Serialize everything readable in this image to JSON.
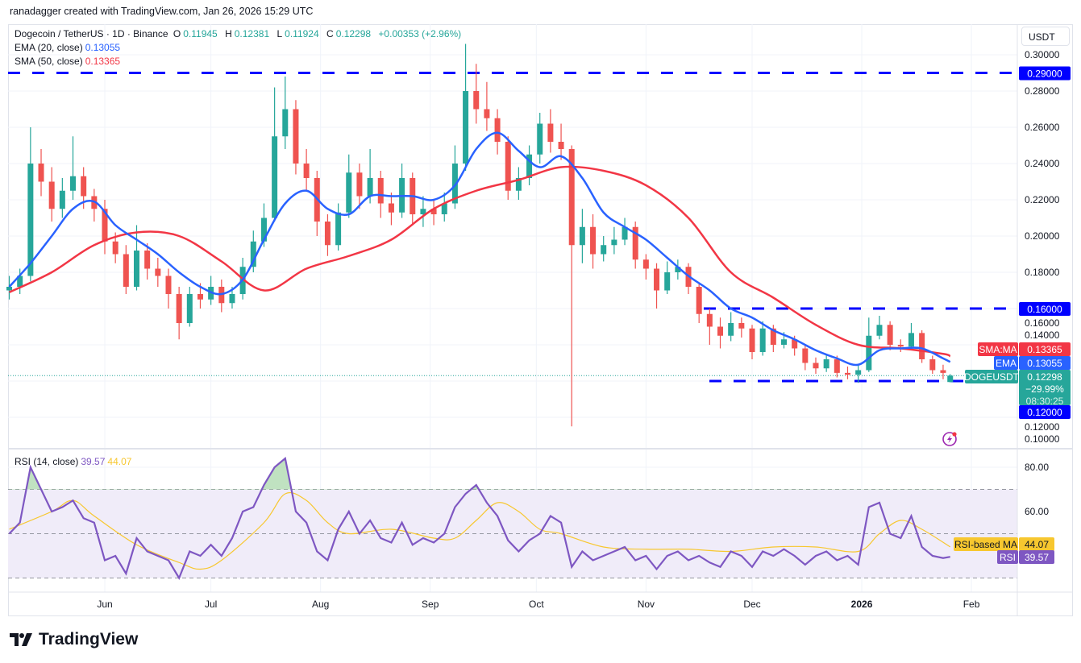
{
  "attribution": "ranadagger created with TradingView.com, Jan 26, 2026 15:29 UTC",
  "legend": {
    "symbol": "Dogecoin / TetherUS · 1D · Binance",
    "open_label": "O",
    "open": "0.11945",
    "high_label": "H",
    "high": "0.12381",
    "low_label": "L",
    "low": "0.11924",
    "close_label": "C",
    "close": "0.12298",
    "change": "+0.00353 (+2.96%)",
    "ema_label": "EMA (20, close)",
    "ema_value": "0.13055",
    "sma_label": "SMA (50, close)",
    "sma_value": "0.13365",
    "rsi_label": "RSI (14, close)",
    "rsi_value": "39.57",
    "rsi_ma_value": "44.07"
  },
  "price_axis": {
    "unit": "USDT",
    "ticks": [
      "0.30000",
      "0.28000",
      "0.26000",
      "0.24000",
      "0.22000",
      "0.20000",
      "0.18000",
      "0.16000",
      "0.14000",
      "0.12000",
      "0.10000"
    ],
    "tick_values": [
      0.3,
      0.28,
      0.26,
      0.24,
      0.22,
      0.2,
      0.18,
      0.16,
      0.14,
      0.12,
      0.1
    ]
  },
  "rsi_axis": {
    "ticks": [
      "80.00",
      "60.00"
    ],
    "tick_values": [
      80,
      60
    ],
    "bands": [
      70,
      50,
      30
    ]
  },
  "time_axis": {
    "labels": [
      "Jun",
      "Jul",
      "Aug",
      "Sep",
      "Oct",
      "Nov",
      "Dec",
      "2026",
      "Feb"
    ],
    "dates": [
      "2025-06-01",
      "2025-07-01",
      "2025-08-01",
      "2025-09-01",
      "2025-10-01",
      "2025-11-01",
      "2025-12-01",
      "2026-01-01",
      "2026-02-01"
    ]
  },
  "price_labels": {
    "level_290": "0.29000",
    "level_160": "0.16000",
    "level_120": "0.12000",
    "sma_tag": "SMA:MA",
    "sma_value": "0.13365",
    "ema_tag": "EMA",
    "ema_value": "0.13055",
    "symbol_tag": "DOGEUSDT",
    "last_price": "0.12298",
    "change_pct": "−29.99%",
    "countdown": "08:30:25",
    "rsi_ma_tag": "RSI-based MA",
    "rsi_ma_value": "44.07",
    "rsi_tag": "RSI",
    "rsi_value": "39.57"
  },
  "colors": {
    "up": "#26a69a",
    "down": "#ef5350",
    "ema": "#2962ff",
    "sma": "#f23645",
    "rsi": "#7e57c2",
    "rsi_ma": "#f7c72f",
    "levels": "#0000ff",
    "rsi_band": "#f0ecf9"
  },
  "icons": {
    "alert": "lightning-alert-icon",
    "logo": "tradingview-logo"
  },
  "brand": "TradingView",
  "chart_data": {
    "type": "candlestick",
    "interval": "1D (sampled every 3 days, estimated)",
    "ylim": [
      0.09,
      0.31
    ],
    "horizontal_levels": [
      0.29,
      0.16,
      0.12
    ],
    "candles_columns": [
      "date",
      "open",
      "high",
      "low",
      "close"
    ],
    "candles": [
      [
        "2025-05-05",
        0.17,
        0.178,
        0.165,
        0.172
      ],
      [
        "2025-05-08",
        0.172,
        0.182,
        0.168,
        0.178
      ],
      [
        "2025-05-11",
        0.178,
        0.26,
        0.175,
        0.24
      ],
      [
        "2025-05-14",
        0.24,
        0.248,
        0.222,
        0.23
      ],
      [
        "2025-05-17",
        0.23,
        0.238,
        0.208,
        0.215
      ],
      [
        "2025-05-20",
        0.215,
        0.232,
        0.21,
        0.225
      ],
      [
        "2025-05-23",
        0.225,
        0.255,
        0.22,
        0.233
      ],
      [
        "2025-05-26",
        0.233,
        0.238,
        0.215,
        0.222
      ],
      [
        "2025-05-29",
        0.222,
        0.226,
        0.208,
        0.215
      ],
      [
        "2025-06-01",
        0.215,
        0.22,
        0.19,
        0.197
      ],
      [
        "2025-06-04",
        0.197,
        0.202,
        0.185,
        0.19
      ],
      [
        "2025-06-07",
        0.19,
        0.195,
        0.168,
        0.172
      ],
      [
        "2025-06-10",
        0.172,
        0.206,
        0.17,
        0.192
      ],
      [
        "2025-06-13",
        0.192,
        0.196,
        0.176,
        0.182
      ],
      [
        "2025-06-16",
        0.182,
        0.188,
        0.172,
        0.178
      ],
      [
        "2025-06-19",
        0.178,
        0.182,
        0.16,
        0.168
      ],
      [
        "2025-06-22",
        0.168,
        0.172,
        0.143,
        0.152
      ],
      [
        "2025-06-25",
        0.152,
        0.172,
        0.15,
        0.168
      ],
      [
        "2025-06-28",
        0.168,
        0.174,
        0.16,
        0.165
      ],
      [
        "2025-07-01",
        0.165,
        0.178,
        0.162,
        0.172
      ],
      [
        "2025-07-04",
        0.172,
        0.176,
        0.158,
        0.163
      ],
      [
        "2025-07-07",
        0.163,
        0.172,
        0.16,
        0.168
      ],
      [
        "2025-07-10",
        0.168,
        0.188,
        0.165,
        0.183
      ],
      [
        "2025-07-13",
        0.183,
        0.203,
        0.18,
        0.197
      ],
      [
        "2025-07-16",
        0.197,
        0.218,
        0.194,
        0.21
      ],
      [
        "2025-07-19",
        0.21,
        0.282,
        0.208,
        0.255
      ],
      [
        "2025-07-22",
        0.255,
        0.288,
        0.248,
        0.27
      ],
      [
        "2025-07-25",
        0.27,
        0.275,
        0.234,
        0.24
      ],
      [
        "2025-07-28",
        0.24,
        0.248,
        0.225,
        0.232
      ],
      [
        "2025-07-31",
        0.232,
        0.236,
        0.2,
        0.208
      ],
      [
        "2025-08-03",
        0.208,
        0.212,
        0.189,
        0.195
      ],
      [
        "2025-08-06",
        0.195,
        0.218,
        0.192,
        0.213
      ],
      [
        "2025-08-09",
        0.213,
        0.245,
        0.21,
        0.235
      ],
      [
        "2025-08-12",
        0.235,
        0.24,
        0.215,
        0.222
      ],
      [
        "2025-08-15",
        0.222,
        0.248,
        0.218,
        0.232
      ],
      [
        "2025-08-18",
        0.232,
        0.236,
        0.21,
        0.218
      ],
      [
        "2025-08-21",
        0.218,
        0.224,
        0.206,
        0.213
      ],
      [
        "2025-08-24",
        0.213,
        0.24,
        0.21,
        0.232
      ],
      [
        "2025-08-27",
        0.232,
        0.235,
        0.206,
        0.212
      ],
      [
        "2025-08-30",
        0.212,
        0.222,
        0.205,
        0.215
      ],
      [
        "2025-09-02",
        0.215,
        0.22,
        0.206,
        0.212
      ],
      [
        "2025-09-05",
        0.212,
        0.224,
        0.208,
        0.218
      ],
      [
        "2025-09-08",
        0.218,
        0.25,
        0.215,
        0.24
      ],
      [
        "2025-09-11",
        0.24,
        0.306,
        0.236,
        0.28
      ],
      [
        "2025-09-14",
        0.28,
        0.295,
        0.262,
        0.27
      ],
      [
        "2025-09-17",
        0.27,
        0.285,
        0.258,
        0.265
      ],
      [
        "2025-09-20",
        0.265,
        0.27,
        0.245,
        0.252
      ],
      [
        "2025-09-23",
        0.252,
        0.255,
        0.22,
        0.225
      ],
      [
        "2025-09-26",
        0.225,
        0.238,
        0.22,
        0.232
      ],
      [
        "2025-09-29",
        0.232,
        0.25,
        0.228,
        0.245
      ],
      [
        "2025-10-02",
        0.245,
        0.268,
        0.24,
        0.262
      ],
      [
        "2025-10-05",
        0.262,
        0.27,
        0.246,
        0.252
      ],
      [
        "2025-10-08",
        0.252,
        0.262,
        0.242,
        0.248
      ],
      [
        "2025-10-11",
        0.248,
        0.25,
        0.095,
        0.195
      ],
      [
        "2025-10-14",
        0.195,
        0.215,
        0.185,
        0.205
      ],
      [
        "2025-10-17",
        0.205,
        0.212,
        0.182,
        0.19
      ],
      [
        "2025-10-20",
        0.19,
        0.2,
        0.186,
        0.195
      ],
      [
        "2025-10-23",
        0.195,
        0.205,
        0.19,
        0.198
      ],
      [
        "2025-10-26",
        0.198,
        0.21,
        0.195,
        0.205
      ],
      [
        "2025-10-29",
        0.205,
        0.208,
        0.182,
        0.187
      ],
      [
        "2025-11-01",
        0.187,
        0.19,
        0.176,
        0.182
      ],
      [
        "2025-11-04",
        0.182,
        0.185,
        0.16,
        0.17
      ],
      [
        "2025-11-07",
        0.17,
        0.186,
        0.168,
        0.18
      ],
      [
        "2025-11-10",
        0.18,
        0.187,
        0.176,
        0.183
      ],
      [
        "2025-11-13",
        0.183,
        0.185,
        0.168,
        0.172
      ],
      [
        "2025-11-16",
        0.172,
        0.174,
        0.152,
        0.157
      ],
      [
        "2025-11-19",
        0.157,
        0.16,
        0.14,
        0.15
      ],
      [
        "2025-11-22",
        0.15,
        0.155,
        0.138,
        0.145
      ],
      [
        "2025-11-25",
        0.145,
        0.158,
        0.142,
        0.152
      ],
      [
        "2025-11-28",
        0.152,
        0.155,
        0.144,
        0.149
      ],
      [
        "2025-12-01",
        0.149,
        0.151,
        0.132,
        0.136
      ],
      [
        "2025-12-04",
        0.136,
        0.153,
        0.134,
        0.149
      ],
      [
        "2025-12-07",
        0.149,
        0.151,
        0.136,
        0.14
      ],
      [
        "2025-12-10",
        0.14,
        0.147,
        0.138,
        0.143
      ],
      [
        "2025-12-13",
        0.143,
        0.145,
        0.134,
        0.138
      ],
      [
        "2025-12-16",
        0.138,
        0.14,
        0.126,
        0.13
      ],
      [
        "2025-12-19",
        0.13,
        0.133,
        0.124,
        0.127
      ],
      [
        "2025-12-22",
        0.127,
        0.135,
        0.125,
        0.132
      ],
      [
        "2025-12-25",
        0.132,
        0.134,
        0.122,
        0.1245
      ],
      [
        "2025-12-28",
        0.1245,
        0.128,
        0.121,
        0.1235
      ],
      [
        "2025-12-31",
        0.1235,
        0.129,
        0.119,
        0.126
      ],
      [
        "2026-01-03",
        0.126,
        0.155,
        0.125,
        0.145
      ],
      [
        "2026-01-06",
        0.145,
        0.156,
        0.143,
        0.151
      ],
      [
        "2026-01-09",
        0.151,
        0.153,
        0.137,
        0.14
      ],
      [
        "2026-01-12",
        0.14,
        0.143,
        0.136,
        0.139
      ],
      [
        "2026-01-15",
        0.139,
        0.152,
        0.137,
        0.1465
      ],
      [
        "2026-01-18",
        0.1465,
        0.148,
        0.13,
        0.132
      ],
      [
        "2026-01-21",
        0.132,
        0.134,
        0.124,
        0.126
      ],
      [
        "2026-01-24",
        0.126,
        0.129,
        0.121,
        0.1245
      ],
      [
        "2026-01-26",
        0.11945,
        0.12381,
        0.11924,
        0.12298
      ]
    ],
    "ema20": [
      [
        "2025-05-05",
        0.172
      ],
      [
        "2025-05-11",
        0.185
      ],
      [
        "2025-05-17",
        0.2
      ],
      [
        "2025-05-23",
        0.215
      ],
      [
        "2025-05-29",
        0.219
      ],
      [
        "2025-06-04",
        0.206
      ],
      [
        "2025-06-10",
        0.198
      ],
      [
        "2025-06-16",
        0.19
      ],
      [
        "2025-06-22",
        0.18
      ],
      [
        "2025-06-28",
        0.172
      ],
      [
        "2025-07-04",
        0.168
      ],
      [
        "2025-07-10",
        0.176
      ],
      [
        "2025-07-16",
        0.198
      ],
      [
        "2025-07-22",
        0.218
      ],
      [
        "2025-07-28",
        0.225
      ],
      [
        "2025-08-03",
        0.215
      ],
      [
        "2025-08-09",
        0.212
      ],
      [
        "2025-08-15",
        0.222
      ],
      [
        "2025-08-21",
        0.222
      ],
      [
        "2025-08-27",
        0.222
      ],
      [
        "2025-09-02",
        0.22
      ],
      [
        "2025-09-08",
        0.228
      ],
      [
        "2025-09-14",
        0.248
      ],
      [
        "2025-09-20",
        0.257
      ],
      [
        "2025-09-26",
        0.247
      ],
      [
        "2025-10-02",
        0.238
      ],
      [
        "2025-10-08",
        0.244
      ],
      [
        "2025-10-14",
        0.232
      ],
      [
        "2025-10-20",
        0.213
      ],
      [
        "2025-10-26",
        0.205
      ],
      [
        "2025-11-01",
        0.198
      ],
      [
        "2025-11-07",
        0.188
      ],
      [
        "2025-11-13",
        0.178
      ],
      [
        "2025-11-19",
        0.17
      ],
      [
        "2025-11-25",
        0.16
      ],
      [
        "2025-12-01",
        0.155
      ],
      [
        "2025-12-07",
        0.148
      ],
      [
        "2025-12-13",
        0.143
      ],
      [
        "2025-12-19",
        0.137
      ],
      [
        "2025-12-25",
        0.1325
      ],
      [
        "2025-12-31",
        0.129
      ],
      [
        "2026-01-06",
        0.137
      ],
      [
        "2026-01-12",
        0.138
      ],
      [
        "2026-01-18",
        0.138
      ],
      [
        "2026-01-24",
        0.1325
      ],
      [
        "2026-01-26",
        0.13055
      ]
    ],
    "sma50": [
      [
        "2025-05-05",
        0.169
      ],
      [
        "2025-05-17",
        0.18
      ],
      [
        "2025-05-29",
        0.195
      ],
      [
        "2025-06-10",
        0.202
      ],
      [
        "2025-06-22",
        0.2
      ],
      [
        "2025-07-04",
        0.186
      ],
      [
        "2025-07-16",
        0.17
      ],
      [
        "2025-07-28",
        0.182
      ],
      [
        "2025-08-09",
        0.189
      ],
      [
        "2025-08-21",
        0.198
      ],
      [
        "2025-09-02",
        0.215
      ],
      [
        "2025-09-14",
        0.225
      ],
      [
        "2025-09-26",
        0.231
      ],
      [
        "2025-10-08",
        0.238
      ],
      [
        "2025-10-20",
        0.236
      ],
      [
        "2025-11-01",
        0.228
      ],
      [
        "2025-11-13",
        0.21
      ],
      [
        "2025-11-25",
        0.18
      ],
      [
        "2025-12-07",
        0.166
      ],
      [
        "2025-12-19",
        0.151
      ],
      [
        "2025-12-31",
        0.14
      ],
      [
        "2026-01-12",
        0.138
      ],
      [
        "2026-01-24",
        0.135
      ],
      [
        "2026-01-26",
        0.13365
      ]
    ],
    "rsi14": [
      50,
      55,
      80,
      70,
      60,
      62,
      65,
      57,
      55,
      38,
      40,
      32,
      48,
      42,
      40,
      38,
      30,
      42,
      40,
      45,
      40,
      48,
      60,
      62,
      72,
      80,
      84,
      60,
      55,
      42,
      38,
      52,
      60,
      50,
      56,
      48,
      46,
      55,
      45,
      48,
      46,
      50,
      62,
      68,
      72,
      64,
      58,
      47,
      42,
      47,
      50,
      58,
      55,
      35,
      42,
      38,
      40,
      42,
      44,
      38,
      40,
      34,
      40,
      42,
      38,
      40,
      37,
      35,
      42,
      40,
      35,
      42,
      40,
      43,
      40,
      36,
      40,
      42,
      38,
      40,
      36,
      62,
      64,
      50,
      48,
      58,
      44,
      40,
      39,
      39.57
    ],
    "rsi_ma": [
      [
        "2025-05-05",
        52
      ],
      [
        "2025-05-17",
        60
      ],
      [
        "2025-05-23",
        65
      ],
      [
        "2025-05-29",
        58
      ],
      [
        "2025-06-10",
        45
      ],
      [
        "2025-06-22",
        37
      ],
      [
        "2025-06-28",
        34
      ],
      [
        "2025-07-04",
        38
      ],
      [
        "2025-07-16",
        55
      ],
      [
        "2025-07-22",
        68
      ],
      [
        "2025-07-28",
        65
      ],
      [
        "2025-08-03",
        55
      ],
      [
        "2025-08-09",
        50
      ],
      [
        "2025-08-21",
        52
      ],
      [
        "2025-09-02",
        48
      ],
      [
        "2025-09-08",
        48
      ],
      [
        "2025-09-14",
        56
      ],
      [
        "2025-09-20",
        64
      ],
      [
        "2025-09-26",
        60
      ],
      [
        "2025-10-02",
        52
      ],
      [
        "2025-10-08",
        50
      ],
      [
        "2025-10-20",
        44
      ],
      [
        "2025-11-01",
        43
      ],
      [
        "2025-11-13",
        43
      ],
      [
        "2025-11-25",
        42
      ],
      [
        "2025-12-07",
        44
      ],
      [
        "2025-12-19",
        44
      ],
      [
        "2025-12-31",
        42
      ],
      [
        "2026-01-06",
        50
      ],
      [
        "2026-01-12",
        56
      ],
      [
        "2026-01-18",
        52
      ],
      [
        "2026-01-26",
        44.07
      ]
    ]
  }
}
